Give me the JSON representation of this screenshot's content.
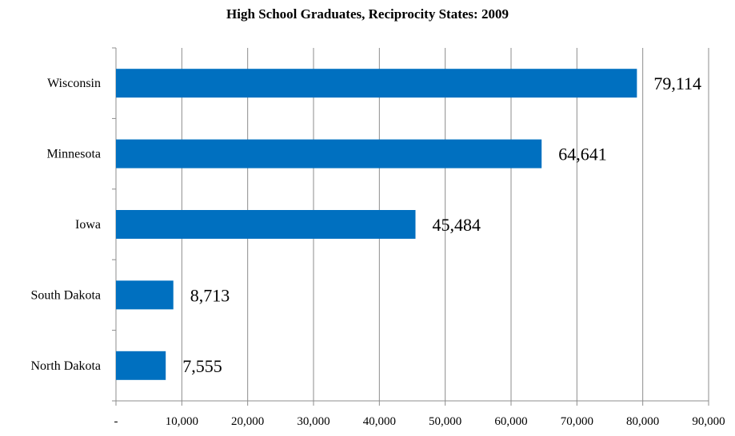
{
  "chart_data": {
    "type": "bar",
    "orientation": "horizontal",
    "title": "High School Graduates, Reciprocity States: 2009",
    "xlabel": "",
    "ylabel": "",
    "categories": [
      "Wisconsin",
      "Minnesota",
      "Iowa",
      "South Dakota",
      "North Dakota"
    ],
    "values": [
      79114,
      64641,
      45484,
      8713,
      7555
    ],
    "data_labels": [
      "79,114",
      "64,641",
      "45,484",
      "8,713",
      "7,555"
    ],
    "xlim": [
      0,
      90000
    ],
    "x_ticks": [
      0,
      10000,
      20000,
      30000,
      40000,
      50000,
      60000,
      70000,
      80000,
      90000
    ],
    "x_tick_labels": [
      "-",
      "10,000",
      "20,000",
      "30,000",
      "40,000",
      "50,000",
      "60,000",
      "70,000",
      "80,000",
      "90,000"
    ],
    "grid": "vertical",
    "legend": "none",
    "bar_color": "#0070C0"
  }
}
